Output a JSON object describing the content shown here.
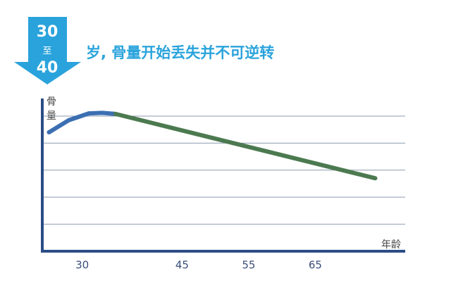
{
  "header": {
    "from": "30",
    "connector": "至",
    "to": "40",
    "title": "岁, 骨量开始丢失并不可逆转"
  },
  "chart_data": {
    "type": "line",
    "y_label": "骨量",
    "x_label": "年龄",
    "xlim": [
      24,
      78.5
    ],
    "xticks": [
      30,
      45,
      55,
      65
    ],
    "ylim": [
      0,
      5.65
    ],
    "yticks": [
      1,
      2,
      3,
      4,
      5
    ],
    "ytick_labels": false,
    "grid": true,
    "series": [
      {
        "color": "#3b6fb2",
        "x": [
          25,
          28,
          31,
          33,
          35
        ],
        "values": [
          4.4,
          4.85,
          5.1,
          5.12,
          5.08
        ]
      },
      {
        "color": "#4c7a50",
        "x": [
          35,
          74
        ],
        "values": [
          5.08,
          2.7
        ]
      }
    ]
  }
}
